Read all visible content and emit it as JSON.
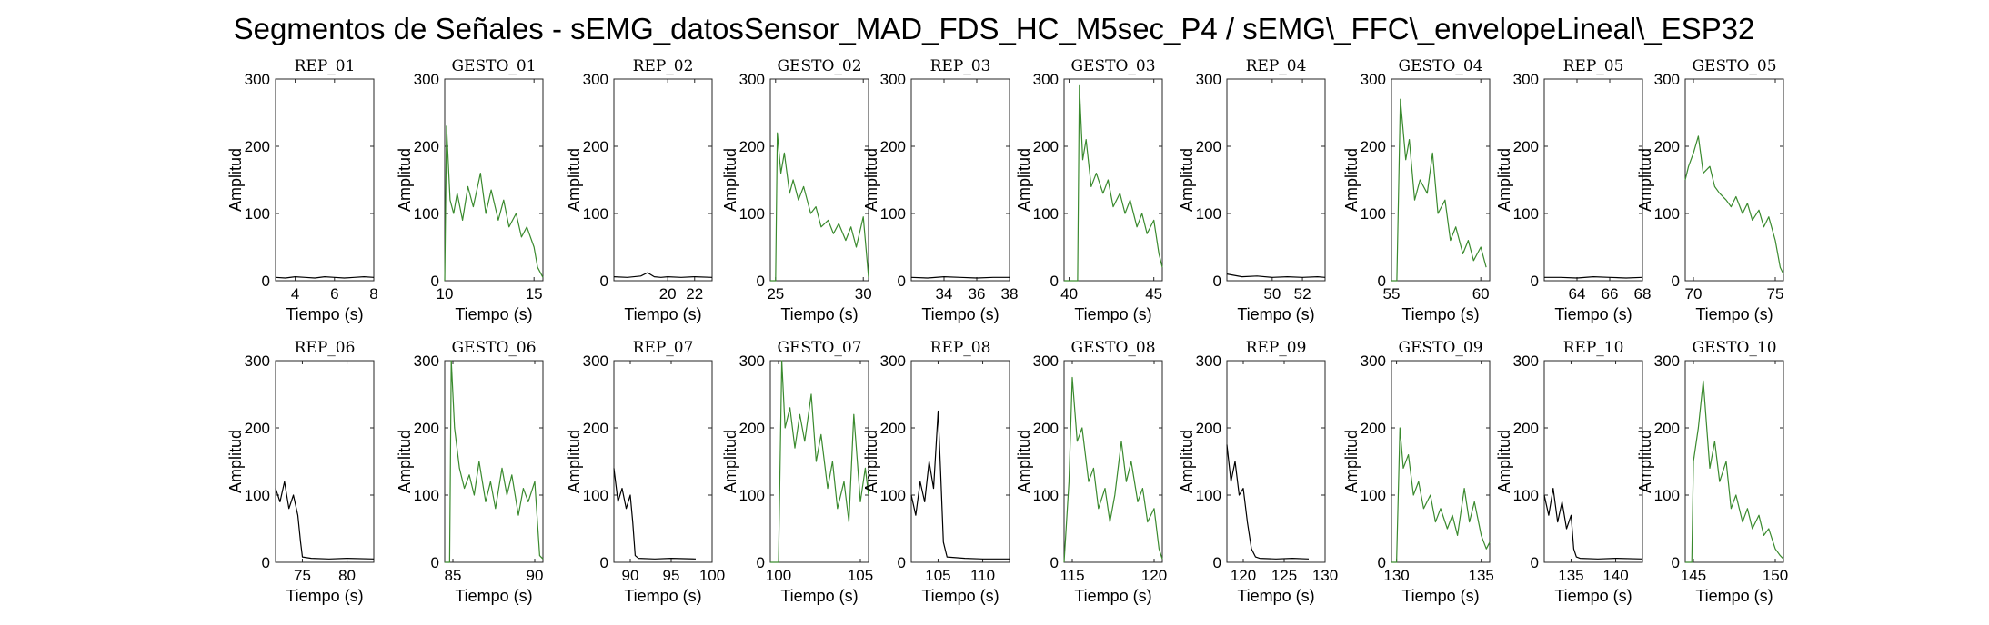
{
  "figure": {
    "title": "Segmentos de Señales - sEMG_datosSensor_MAD_FDS_HC_M5sec_P4 / sEMG\\_FFC\\_envelopeLineal\\_ESP32"
  },
  "colors": {
    "rep": "#000000",
    "gesto": "#3a8a2e",
    "axis": "#262626"
  },
  "chart_data": [
    {
      "type": "line",
      "title": "REP_01",
      "xlabel": "Tiempo (s)",
      "ylabel": "Amplitud",
      "xlim": [
        3,
        8
      ],
      "ylim": [
        0,
        300
      ],
      "xticks": [
        4,
        6,
        8
      ],
      "yticks": [
        0,
        100,
        200,
        300
      ],
      "series": [
        {
          "style": "rep",
          "x": [
            3,
            3.5,
            4,
            4.5,
            5,
            5.5,
            6,
            6.5,
            7,
            7.5,
            8
          ],
          "y": [
            5,
            4,
            6,
            5,
            4,
            6,
            5,
            4,
            5,
            6,
            5
          ]
        }
      ]
    },
    {
      "type": "line",
      "title": "GESTO_01",
      "xlabel": "Tiempo (s)",
      "ylabel": "Amplitud",
      "xlim": [
        10,
        15.5
      ],
      "ylim": [
        0,
        300
      ],
      "xticks": [
        10,
        15
      ],
      "yticks": [
        0,
        100,
        200,
        300
      ],
      "series": [
        {
          "style": "gesto",
          "x": [
            10,
            10.1,
            10.3,
            10.5,
            10.7,
            11,
            11.3,
            11.6,
            12,
            12.3,
            12.6,
            13,
            13.3,
            13.6,
            14,
            14.3,
            14.6,
            15,
            15.2,
            15.5
          ],
          "y": [
            0,
            230,
            120,
            100,
            130,
            90,
            140,
            110,
            160,
            100,
            135,
            90,
            120,
            80,
            100,
            65,
            80,
            50,
            20,
            5
          ]
        }
      ]
    },
    {
      "type": "line",
      "title": "REP_02",
      "xlabel": "Tiempo (s)",
      "ylabel": "Amplitud",
      "xlim": [
        16,
        23.3
      ],
      "ylim": [
        0,
        300
      ],
      "xticks": [
        20,
        22
      ],
      "yticks": [
        0,
        100,
        200,
        300
      ],
      "series": [
        {
          "style": "rep",
          "x": [
            16,
            17,
            18,
            18.5,
            19,
            19.5,
            20,
            21,
            22,
            23.3
          ],
          "y": [
            6,
            5,
            7,
            12,
            6,
            5,
            6,
            5,
            6,
            5
          ]
        }
      ]
    },
    {
      "type": "line",
      "title": "GESTO_02",
      "xlabel": "Tiempo (s)",
      "ylabel": "Amplitud",
      "xlim": [
        24.7,
        30.3
      ],
      "ylim": [
        0,
        300
      ],
      "xticks": [
        25,
        30
      ],
      "yticks": [
        0,
        100,
        200,
        300
      ],
      "series": [
        {
          "style": "gesto",
          "x": [
            24.7,
            25,
            25.1,
            25.3,
            25.5,
            25.8,
            26,
            26.3,
            26.6,
            27,
            27.3,
            27.6,
            28,
            28.3,
            28.6,
            29,
            29.3,
            29.6,
            30,
            30.3
          ],
          "y": [
            0,
            0,
            220,
            160,
            190,
            130,
            150,
            120,
            140,
            100,
            110,
            80,
            90,
            70,
            85,
            60,
            80,
            50,
            95,
            5
          ]
        }
      ]
    },
    {
      "type": "line",
      "title": "REP_03",
      "xlabel": "Tiempo (s)",
      "ylabel": "Amplitud",
      "xlim": [
        32,
        38
      ],
      "ylim": [
        0,
        300
      ],
      "xticks": [
        34,
        36,
        38
      ],
      "yticks": [
        0,
        100,
        200,
        300
      ],
      "series": [
        {
          "style": "rep",
          "x": [
            32,
            33,
            34,
            35,
            36,
            37,
            38
          ],
          "y": [
            5,
            4,
            6,
            5,
            4,
            5,
            5
          ]
        }
      ]
    },
    {
      "type": "line",
      "title": "GESTO_03",
      "xlabel": "Tiempo (s)",
      "ylabel": "Amplitud",
      "xlim": [
        39.7,
        45.5
      ],
      "ylim": [
        0,
        300
      ],
      "xticks": [
        40,
        45
      ],
      "yticks": [
        0,
        100,
        200,
        300
      ],
      "series": [
        {
          "style": "gesto",
          "x": [
            39.7,
            40.5,
            40.6,
            40.8,
            41,
            41.3,
            41.6,
            42,
            42.3,
            42.6,
            43,
            43.3,
            43.6,
            44,
            44.3,
            44.6,
            45,
            45.3,
            45.5
          ],
          "y": [
            0,
            0,
            290,
            180,
            210,
            140,
            160,
            130,
            150,
            110,
            130,
            100,
            120,
            80,
            100,
            70,
            90,
            40,
            20
          ]
        }
      ]
    },
    {
      "type": "line",
      "title": "REP_04",
      "xlabel": "Tiempo (s)",
      "ylabel": "Amplitud",
      "xlim": [
        47,
        53.5
      ],
      "ylim": [
        0,
        300
      ],
      "xticks": [
        50,
        52
      ],
      "yticks": [
        0,
        100,
        200,
        300
      ],
      "series": [
        {
          "style": "rep",
          "x": [
            47,
            47.5,
            48,
            49,
            50,
            51,
            52,
            53,
            53.5
          ],
          "y": [
            10,
            8,
            6,
            7,
            5,
            6,
            5,
            6,
            5
          ]
        }
      ]
    },
    {
      "type": "line",
      "title": "GESTO_04",
      "xlabel": "Tiempo (s)",
      "ylabel": "Amplitud",
      "xlim": [
        55,
        60.5
      ],
      "ylim": [
        0,
        300
      ],
      "xticks": [
        55,
        60
      ],
      "yticks": [
        0,
        100,
        200,
        300
      ],
      "series": [
        {
          "style": "gesto",
          "x": [
            55,
            55.3,
            55.5,
            55.8,
            56,
            56.3,
            56.6,
            57,
            57.3,
            57.6,
            58,
            58.3,
            58.6,
            59,
            59.3,
            59.6,
            60,
            60.3
          ],
          "y": [
            0,
            0,
            270,
            180,
            210,
            120,
            150,
            130,
            190,
            100,
            120,
            60,
            80,
            40,
            60,
            30,
            50,
            20
          ]
        }
      ]
    },
    {
      "type": "line",
      "title": "REP_05",
      "xlabel": "Tiempo (s)",
      "ylabel": "Amplitud",
      "xlim": [
        62,
        68
      ],
      "ylim": [
        0,
        300
      ],
      "xticks": [
        64,
        66,
        68
      ],
      "yticks": [
        0,
        100,
        200,
        300
      ],
      "series": [
        {
          "style": "rep",
          "x": [
            62,
            63,
            64,
            65,
            66,
            67,
            68
          ],
          "y": [
            5,
            5,
            4,
            6,
            5,
            4,
            5
          ]
        }
      ]
    },
    {
      "type": "line",
      "title": "GESTO_05",
      "xlabel": "Tiempo (s)",
      "ylabel": "Amplitud",
      "xlim": [
        69.5,
        75.5
      ],
      "ylim": [
        0,
        300
      ],
      "xticks": [
        70,
        75
      ],
      "yticks": [
        0,
        100,
        200,
        300
      ],
      "series": [
        {
          "style": "gesto",
          "x": [
            69.5,
            69.7,
            70,
            70.3,
            70.6,
            71,
            71.3,
            71.6,
            72,
            72.3,
            72.6,
            73,
            73.3,
            73.6,
            74,
            74.3,
            74.6,
            75,
            75.3,
            75.5
          ],
          "y": [
            150,
            170,
            190,
            215,
            160,
            170,
            140,
            130,
            120,
            110,
            125,
            100,
            115,
            90,
            105,
            80,
            95,
            60,
            20,
            10
          ]
        }
      ]
    },
    {
      "type": "line",
      "title": "REP_06",
      "xlabel": "Tiempo (s)",
      "ylabel": "Amplitud",
      "xlim": [
        72,
        83
      ],
      "ylim": [
        0,
        300
      ],
      "xticks": [
        75,
        80
      ],
      "yticks": [
        0,
        100,
        200,
        300
      ],
      "series": [
        {
          "style": "rep",
          "x": [
            72,
            72.5,
            73,
            73.5,
            74,
            74.5,
            74.8,
            75,
            76,
            78,
            80,
            83
          ],
          "y": [
            110,
            90,
            120,
            80,
            100,
            70,
            30,
            8,
            6,
            5,
            6,
            5
          ]
        }
      ]
    },
    {
      "type": "line",
      "title": "GESTO_06",
      "xlabel": "Tiempo (s)",
      "ylabel": "Amplitud",
      "xlim": [
        84.5,
        90.5
      ],
      "ylim": [
        0,
        300
      ],
      "xticks": [
        85,
        90
      ],
      "yticks": [
        0,
        100,
        200,
        300
      ],
      "series": [
        {
          "style": "gesto",
          "x": [
            84.5,
            84.8,
            84.9,
            85.1,
            85.4,
            85.7,
            86,
            86.3,
            86.6,
            87,
            87.3,
            87.6,
            88,
            88.3,
            88.6,
            89,
            89.3,
            89.6,
            90,
            90.3,
            90.5
          ],
          "y": [
            0,
            0,
            300,
            200,
            140,
            110,
            130,
            100,
            150,
            90,
            120,
            80,
            140,
            100,
            130,
            70,
            110,
            90,
            120,
            10,
            5
          ]
        }
      ]
    },
    {
      "type": "line",
      "title": "REP_07",
      "xlabel": "Tiempo (s)",
      "ylabel": "Amplitud",
      "xlim": [
        88,
        100
      ],
      "ylim": [
        0,
        300
      ],
      "xticks": [
        90,
        95,
        100
      ],
      "yticks": [
        0,
        100,
        200,
        300
      ],
      "series": [
        {
          "style": "rep",
          "x": [
            88,
            88.5,
            89,
            89.5,
            90,
            90.3,
            90.6,
            91,
            93,
            95,
            98
          ],
          "y": [
            140,
            90,
            110,
            80,
            100,
            60,
            10,
            6,
            5,
            6,
            5
          ]
        }
      ]
    },
    {
      "type": "line",
      "title": "GESTO_07",
      "xlabel": "Tiempo (s)",
      "ylabel": "Amplitud",
      "xlim": [
        99.5,
        105.5
      ],
      "ylim": [
        0,
        300
      ],
      "xticks": [
        100,
        105
      ],
      "yticks": [
        0,
        100,
        200,
        300
      ],
      "series": [
        {
          "style": "gesto",
          "x": [
            99.5,
            100,
            100.2,
            100.4,
            100.7,
            101,
            101.3,
            101.6,
            102,
            102.3,
            102.6,
            103,
            103.3,
            103.6,
            104,
            104.3,
            104.6,
            105,
            105.3,
            105.5
          ],
          "y": [
            0,
            0,
            300,
            200,
            230,
            170,
            220,
            180,
            250,
            150,
            190,
            110,
            150,
            80,
            120,
            60,
            220,
            90,
            140,
            100
          ]
        }
      ]
    },
    {
      "type": "line",
      "title": "REP_08",
      "xlabel": "Tiempo (s)",
      "ylabel": "Amplitud",
      "xlim": [
        102,
        113
      ],
      "ylim": [
        0,
        300
      ],
      "xticks": [
        105,
        110
      ],
      "yticks": [
        0,
        100,
        200,
        300
      ],
      "series": [
        {
          "style": "rep",
          "x": [
            102,
            102.5,
            103,
            103.5,
            104,
            104.5,
            105,
            105.3,
            105.6,
            106,
            108,
            110,
            113
          ],
          "y": [
            100,
            70,
            120,
            90,
            150,
            110,
            225,
            130,
            30,
            8,
            6,
            5,
            5
          ]
        }
      ]
    },
    {
      "type": "line",
      "title": "GESTO_08",
      "xlabel": "Tiempo (s)",
      "ylabel": "Amplitud",
      "xlim": [
        114.5,
        120.5
      ],
      "ylim": [
        0,
        300
      ],
      "xticks": [
        115,
        120
      ],
      "yticks": [
        0,
        100,
        200,
        300
      ],
      "series": [
        {
          "style": "gesto",
          "x": [
            114.5,
            114.8,
            115,
            115.3,
            115.6,
            116,
            116.3,
            116.6,
            117,
            117.3,
            117.6,
            118,
            118.3,
            118.6,
            119,
            119.3,
            119.6,
            120,
            120.3,
            120.5
          ],
          "y": [
            0,
            120,
            275,
            180,
            200,
            120,
            140,
            80,
            110,
            60,
            100,
            180,
            120,
            150,
            90,
            110,
            60,
            80,
            20,
            5
          ]
        }
      ]
    },
    {
      "type": "line",
      "title": "REP_09",
      "xlabel": "Tiempo (s)",
      "ylabel": "Amplitud",
      "xlim": [
        118,
        130
      ],
      "ylim": [
        0,
        300
      ],
      "xticks": [
        120,
        125,
        130
      ],
      "yticks": [
        0,
        100,
        200,
        300
      ],
      "series": [
        {
          "style": "rep",
          "x": [
            118,
            118.5,
            119,
            119.5,
            120,
            120.5,
            121,
            121.5,
            122,
            124,
            126,
            128
          ],
          "y": [
            175,
            120,
            150,
            100,
            110,
            60,
            20,
            8,
            6,
            5,
            6,
            5
          ]
        }
      ]
    },
    {
      "type": "line",
      "title": "GESTO_09",
      "xlabel": "Tiempo (s)",
      "ylabel": "Amplitud",
      "xlim": [
        129.7,
        135.5
      ],
      "ylim": [
        0,
        300
      ],
      "xticks": [
        130,
        135
      ],
      "yticks": [
        0,
        100,
        200,
        300
      ],
      "series": [
        {
          "style": "gesto",
          "x": [
            129.7,
            130,
            130.2,
            130.4,
            130.7,
            131,
            131.3,
            131.6,
            132,
            132.3,
            132.6,
            133,
            133.3,
            133.6,
            134,
            134.3,
            134.6,
            135,
            135.3,
            135.5
          ],
          "y": [
            0,
            0,
            200,
            140,
            160,
            100,
            120,
            80,
            100,
            60,
            80,
            50,
            70,
            40,
            110,
            60,
            90,
            40,
            20,
            30
          ]
        }
      ]
    },
    {
      "type": "line",
      "title": "REP_10",
      "xlabel": "Tiempo (s)",
      "ylabel": "Amplitud",
      "xlim": [
        132,
        143
      ],
      "ylim": [
        0,
        300
      ],
      "xticks": [
        135,
        140
      ],
      "yticks": [
        0,
        100,
        200,
        300
      ],
      "series": [
        {
          "style": "rep",
          "x": [
            132,
            132.5,
            133,
            133.5,
            134,
            134.5,
            135,
            135.3,
            135.6,
            136,
            138,
            140,
            143
          ],
          "y": [
            100,
            70,
            110,
            60,
            90,
            50,
            70,
            20,
            8,
            6,
            5,
            6,
            5
          ]
        }
      ]
    },
    {
      "type": "line",
      "title": "GESTO_10",
      "xlabel": "Tiempo (s)",
      "ylabel": "Amplitud",
      "xlim": [
        144.5,
        150.5
      ],
      "ylim": [
        0,
        300
      ],
      "xticks": [
        145,
        150
      ],
      "yticks": [
        0,
        100,
        200,
        300
      ],
      "series": [
        {
          "style": "gesto",
          "x": [
            144.5,
            144.9,
            145,
            145.3,
            145.6,
            146,
            146.3,
            146.6,
            147,
            147.3,
            147.6,
            148,
            148.3,
            148.6,
            149,
            149.3,
            149.6,
            150,
            150.3,
            150.5
          ],
          "y": [
            0,
            0,
            150,
            200,
            270,
            140,
            180,
            120,
            150,
            80,
            100,
            60,
            80,
            50,
            70,
            40,
            50,
            20,
            10,
            5
          ]
        }
      ]
    }
  ]
}
